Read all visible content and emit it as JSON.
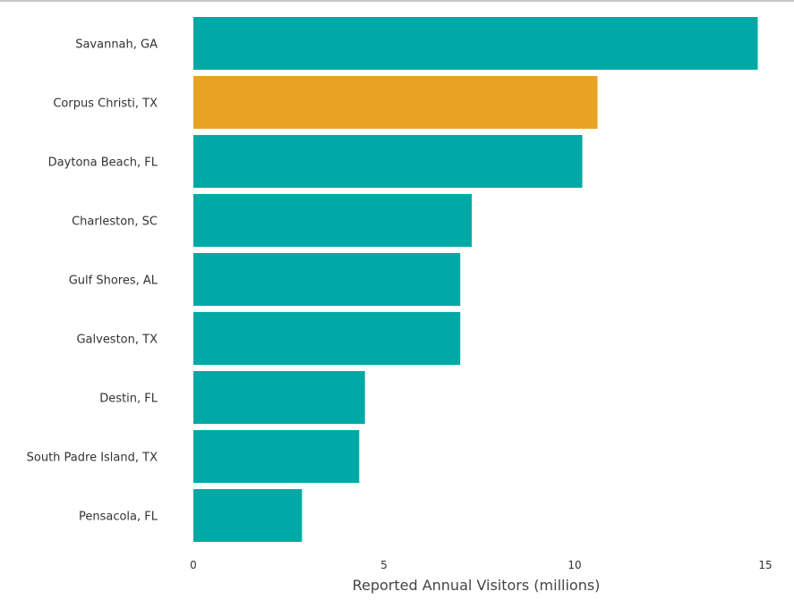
{
  "chart_data": {
    "type": "bar",
    "orientation": "horizontal",
    "categories": [
      "Savannah, GA",
      "Corpus Christi, TX",
      "Daytona Beach, FL",
      "Charleston, SC",
      "Gulf Shores, AL",
      "Galveston, TX",
      "Destin, FL",
      "South Padre Island, TX",
      "Pensacola, FL"
    ],
    "values": [
      14.8,
      10.6,
      10.2,
      7.3,
      7.0,
      7.0,
      4.5,
      4.35,
      2.85
    ],
    "highlight_index": 1,
    "colors": {
      "bar": "#00a9a5",
      "highlight": "#e8a325"
    },
    "xlabel": "Reported Annual Visitors (millions)",
    "xlim": [
      0,
      15
    ],
    "xticks": [
      0,
      5,
      10,
      15
    ],
    "grid": false,
    "legend": "none"
  }
}
